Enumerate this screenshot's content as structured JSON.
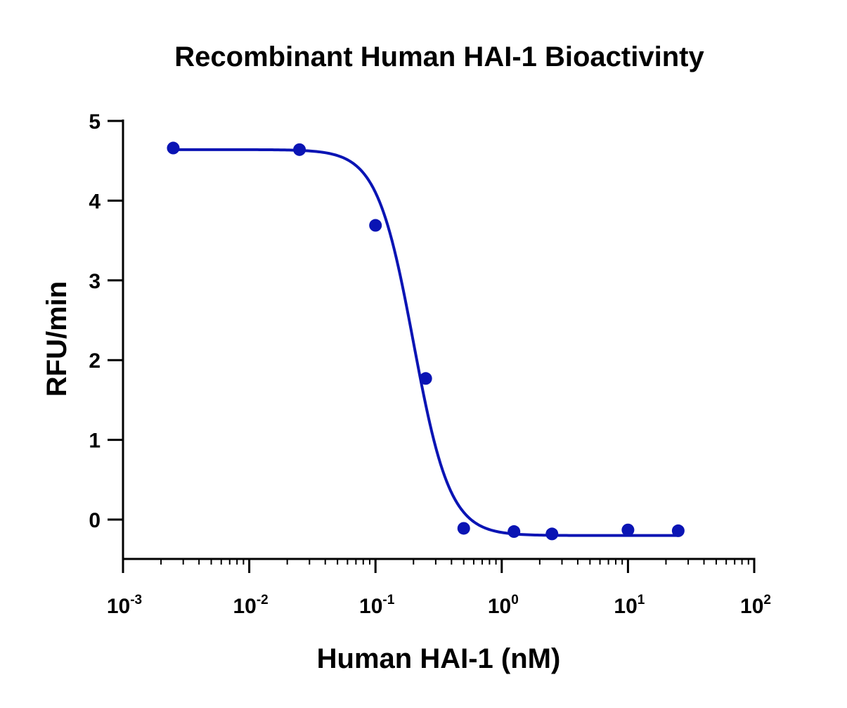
{
  "chart_data": {
    "type": "scatter",
    "title": "Recombinant Human HAI-1 Bioactivinty",
    "xlabel": "Human HAI-1 (nM)",
    "ylabel": "RFU/min",
    "x_scale": "log",
    "xlim": [
      0.001,
      100
    ],
    "ylim": [
      -0.5,
      5
    ],
    "x_ticks": [
      {
        "base": "10",
        "exp": "-3",
        "value": 0.001
      },
      {
        "base": "10",
        "exp": "-2",
        "value": 0.01
      },
      {
        "base": "10",
        "exp": "-1",
        "value": 0.1
      },
      {
        "base": "10",
        "exp": "0",
        "value": 1
      },
      {
        "base": "10",
        "exp": "1",
        "value": 10
      },
      {
        "base": "10",
        "exp": "2",
        "value": 100
      }
    ],
    "y_ticks": [
      {
        "label": "0",
        "value": 0
      },
      {
        "label": "1",
        "value": 1
      },
      {
        "label": "2",
        "value": 2
      },
      {
        "label": "3",
        "value": 3
      },
      {
        "label": "4",
        "value": 4
      },
      {
        "label": "5",
        "value": 5
      }
    ],
    "series": [
      {
        "x": [
          0.0025,
          0.025,
          0.1,
          0.25,
          0.5,
          1.25,
          2.5,
          10,
          25
        ],
        "y": [
          4.66,
          4.64,
          3.69,
          1.77,
          -0.11,
          -0.15,
          -0.18,
          -0.13,
          -0.14
        ]
      }
    ],
    "fit_curve": {
      "type": "four-parameter logistic",
      "top": 4.64,
      "bottom": -0.2,
      "ic50": 0.2,
      "hill": 3.0,
      "x_range": [
        0.0025,
        25
      ]
    },
    "grid": false,
    "legend": "none",
    "colors": {
      "series": "#0a14b4",
      "axis": "#000000"
    }
  }
}
